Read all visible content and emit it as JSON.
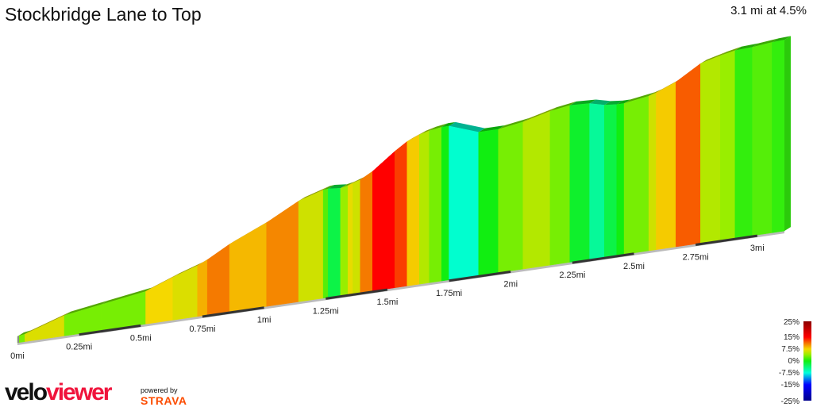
{
  "header": {
    "title": "Stockbridge Lane to Top",
    "summary": "3.1 mi at 4.5%"
  },
  "chart_data": {
    "type": "area",
    "title": "Stockbridge Lane to Top",
    "xlabel": "",
    "ylabel": "",
    "x_unit": "mi",
    "xlim": [
      0,
      3.11
    ],
    "x_ticks": [
      "0mi",
      "0.25mi",
      "0.5mi",
      "0.75mi",
      "1mi",
      "1.25mi",
      "1.5mi",
      "1.75mi",
      "2mi",
      "2.25mi",
      "2.5mi",
      "2.75mi",
      "3mi"
    ],
    "segments": [
      {
        "end_mi": 0.03,
        "grade": 3
      },
      {
        "end_mi": 0.19,
        "grade": 6.5
      },
      {
        "end_mi": 0.34,
        "grade": 3
      },
      {
        "end_mi": 0.52,
        "grade": 3
      },
      {
        "end_mi": 0.63,
        "grade": 7.5
      },
      {
        "end_mi": 0.73,
        "grade": 6.5
      },
      {
        "end_mi": 0.77,
        "grade": 9
      },
      {
        "end_mi": 0.86,
        "grade": 11
      },
      {
        "end_mi": 1.01,
        "grade": 8.7
      },
      {
        "end_mi": 1.14,
        "grade": 10.5
      },
      {
        "end_mi": 1.24,
        "grade": 6
      },
      {
        "end_mi": 1.26,
        "grade": 2
      },
      {
        "end_mi": 1.31,
        "grade": -2
      },
      {
        "end_mi": 1.34,
        "grade": 4
      },
      {
        "end_mi": 1.36,
        "grade": 7
      },
      {
        "end_mi": 1.39,
        "grade": 6
      },
      {
        "end_mi": 1.44,
        "grade": 11
      },
      {
        "end_mi": 1.53,
        "grade": 15
      },
      {
        "end_mi": 1.58,
        "grade": 13
      },
      {
        "end_mi": 1.63,
        "grade": 8
      },
      {
        "end_mi": 1.67,
        "grade": 5
      },
      {
        "end_mi": 1.72,
        "grade": 3
      },
      {
        "end_mi": 1.75,
        "grade": 0
      },
      {
        "end_mi": 1.87,
        "grade": -7
      },
      {
        "end_mi": 1.95,
        "grade": 0
      },
      {
        "end_mi": 2.05,
        "grade": 3
      },
      {
        "end_mi": 2.16,
        "grade": 5
      },
      {
        "end_mi": 2.24,
        "grade": 3
      },
      {
        "end_mi": 2.32,
        "grade": -1
      },
      {
        "end_mi": 2.38,
        "grade": -5
      },
      {
        "end_mi": 2.43,
        "grade": -2
      },
      {
        "end_mi": 2.46,
        "grade": 0
      },
      {
        "end_mi": 2.56,
        "grade": 3
      },
      {
        "end_mi": 2.59,
        "grade": 6
      },
      {
        "end_mi": 2.67,
        "grade": 8
      },
      {
        "end_mi": 2.77,
        "grade": 12
      },
      {
        "end_mi": 2.85,
        "grade": 5
      },
      {
        "end_mi": 2.91,
        "grade": 4
      },
      {
        "end_mi": 2.98,
        "grade": 1
      },
      {
        "end_mi": 3.06,
        "grade": 2
      },
      {
        "end_mi": 3.11,
        "grade": 1
      }
    ],
    "color_scale": {
      "labels": [
        "25%",
        "15%",
        "7.5%",
        "0%",
        "-7.5%",
        "-15%",
        "-25%"
      ],
      "stops": [
        {
          "grade": 25,
          "color": "#8b0000"
        },
        {
          "grade": 15,
          "color": "#ff0000"
        },
        {
          "grade": 11,
          "color": "#f57a00"
        },
        {
          "grade": 7.5,
          "color": "#f5d800"
        },
        {
          "grade": 4,
          "color": "#99ee00"
        },
        {
          "grade": 0,
          "color": "#11ee11"
        },
        {
          "grade": -7.5,
          "color": "#00ffdd"
        },
        {
          "grade": -15,
          "color": "#0000ff"
        },
        {
          "grade": -25,
          "color": "#00008b"
        }
      ]
    }
  },
  "branding": {
    "logo_part1": "velo",
    "logo_part2": "viewer",
    "powered_by": "powered by",
    "strava": "STRAVA"
  }
}
